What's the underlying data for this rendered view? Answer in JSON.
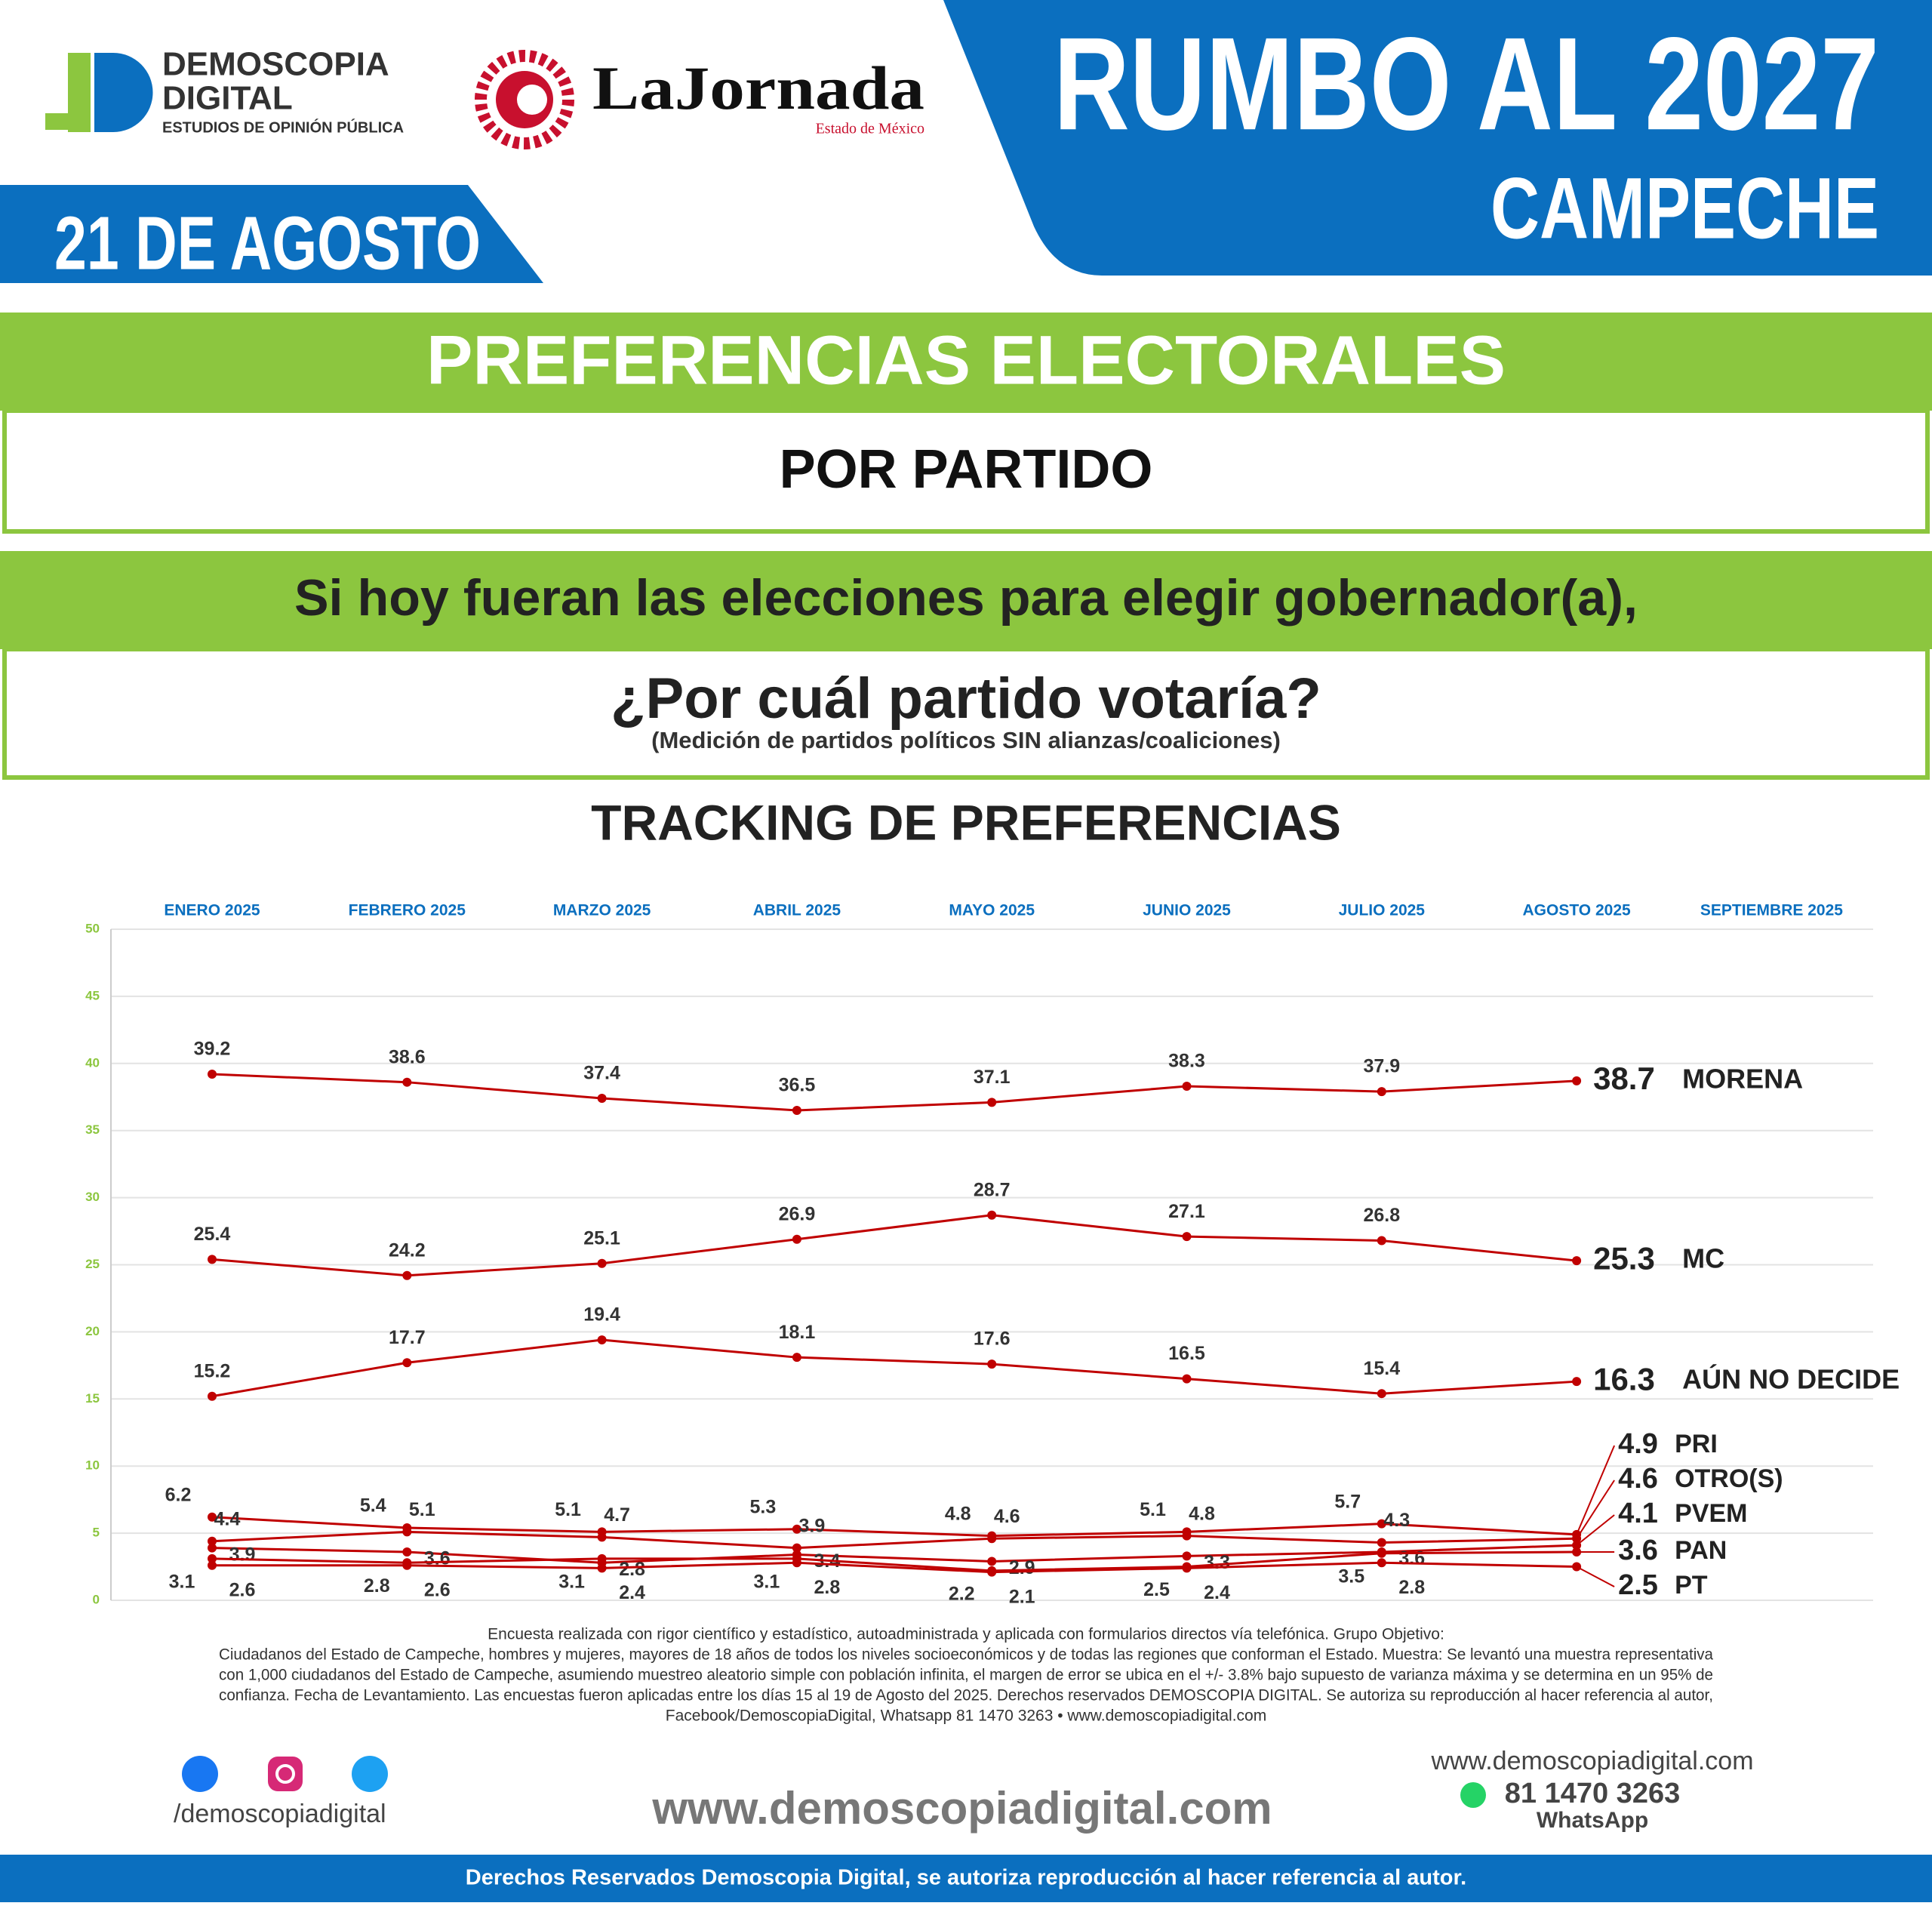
{
  "header": {
    "logo_name_1": "DEMOSCOPIA",
    "logo_name_2": "DIGITAL",
    "logo_tagline": "ESTUDIOS DE OPINIÓN PÚBLICA",
    "partner": "LaJornada",
    "partner_sub": "Estado de México",
    "title": "RUMBO AL 2027",
    "state": "CAMPECHE",
    "date": "21 DE AGOSTO"
  },
  "sections": {
    "heading": "PREFERENCIAS ELECTORALES",
    "subheading": "POR PARTIDO",
    "question_1": "Si hoy fueran las elecciones para elegir gobernador(a),",
    "question_2": "¿Por cuál partido votaría?",
    "question_note": "(Medición de partidos políticos SIN alianzas/coaliciones)"
  },
  "chart_data": {
    "type": "line",
    "title": "TRACKING DE PREFERENCIAS",
    "categories": [
      "ENERO 2025",
      "FEBRERO 2025",
      "MARZO 2025",
      "ABRIL 2025",
      "MAYO 2025",
      "JUNIO 2025",
      "JULIO 2025",
      "AGOSTO 2025",
      "SEPTIEMBRE 2025"
    ],
    "ylim": [
      0,
      50
    ],
    "yticks": [
      0,
      5,
      10,
      15,
      20,
      25,
      30,
      35,
      40,
      45,
      50
    ],
    "grid": true,
    "series": [
      {
        "name": "MORENA",
        "color": "#c00000",
        "values": [
          39.2,
          38.6,
          37.4,
          36.5,
          37.1,
          38.3,
          37.9,
          38.7,
          null
        ]
      },
      {
        "name": "MC",
        "color": "#c00000",
        "values": [
          25.4,
          24.2,
          25.1,
          26.9,
          28.7,
          27.1,
          26.8,
          25.3,
          null
        ]
      },
      {
        "name": "AÚN NO DECIDE",
        "color": "#c00000",
        "values": [
          15.2,
          17.7,
          19.4,
          18.1,
          17.6,
          16.5,
          15.4,
          16.3,
          null
        ]
      },
      {
        "name": "PRI",
        "color": "#c00000",
        "values": [
          6.2,
          5.4,
          5.1,
          5.3,
          4.8,
          5.1,
          5.7,
          4.9,
          null
        ]
      },
      {
        "name": "OTRO(S)",
        "color": "#c00000",
        "values": [
          4.4,
          5.1,
          4.7,
          3.9,
          4.6,
          4.8,
          4.3,
          4.6,
          null
        ]
      },
      {
        "name": "PVEM",
        "color": "#c00000",
        "values": [
          3.9,
          3.6,
          2.8,
          3.4,
          2.9,
          3.3,
          3.6,
          4.1,
          null
        ]
      },
      {
        "name": "PAN",
        "color": "#c00000",
        "values": [
          3.1,
          2.8,
          3.1,
          3.1,
          2.2,
          2.5,
          3.5,
          3.6,
          null
        ]
      },
      {
        "name": "PT",
        "color": "#c00000",
        "values": [
          2.6,
          2.6,
          2.4,
          2.8,
          2.1,
          2.4,
          2.8,
          2.5,
          null
        ]
      }
    ]
  },
  "footer": {
    "note_lines": [
      "Encuesta realizada con rigor científico y estadístico, autoadministrada y aplicada con formularios directos vía telefónica. Grupo Objetivo:",
      "Ciudadanos del Estado de Campeche, hombres y mujeres, mayores de 18 años de todos los niveles socioeconómicos y de todas las regiones que conforman el Estado. Muestra: Se levantó una muestra representativa",
      "con 1,000 ciudadanos del Estado de Campeche, asumiendo muestreo aleatorio simple con población infinita, el margen de error se ubica en el +/- 3.8% bajo supuesto de varianza máxima y se determina en un 95% de",
      "confianza. Fecha de Levantamiento. Las encuestas fueron aplicadas entre los días 15 al 19 de Agosto del 2025. Derechos reservados DEMOSCOPIA DIGITAL. Se autoriza su reproducción al hacer referencia al autor,",
      "Facebook/DemoscopiaDigital, Whatsapp 81 1470 3263 • www.demoscopiadigital.com"
    ],
    "social_handle": "/demoscopiadigital",
    "website_big": "www.demoscopiadigital.com",
    "website": "www.demoscopiadigital.com",
    "phone": "81 1470 3263",
    "phone_label": "WhatsApp",
    "rights": "Derechos Reservados Demoscopia Digital, se autoriza reproducción al hacer referencia al autor."
  }
}
